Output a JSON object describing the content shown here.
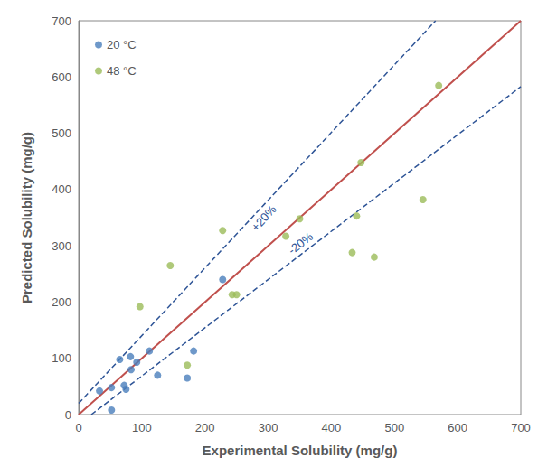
{
  "chart_data": {
    "type": "scatter",
    "xlabel": "Experimental Solubility (mg/g)",
    "ylabel": "Predicted Solubility (mg/g)",
    "xlim": [
      0,
      700
    ],
    "ylim": [
      0,
      700
    ],
    "xticks": [
      0,
      100,
      200,
      300,
      400,
      500,
      600,
      700
    ],
    "yticks": [
      0,
      100,
      200,
      300,
      400,
      500,
      600,
      700
    ],
    "grid": false,
    "legend": "top-left",
    "series": [
      {
        "name": "20 °C",
        "color": "#4a7ebb",
        "marker": "circle",
        "x": [
          33,
          52,
          52,
          65,
          72,
          75,
          82,
          83,
          92,
          112,
          125,
          172,
          182,
          228
        ],
        "values": [
          42,
          48,
          8,
          98,
          52,
          45,
          103,
          80,
          93,
          113,
          70,
          65,
          113,
          240
        ]
      },
      {
        "name": "48 °C",
        "color": "#9bbb59",
        "marker": "circle",
        "x": [
          97,
          145,
          172,
          228,
          243,
          250,
          328,
          350,
          433,
          440,
          447,
          468,
          545,
          570
        ],
        "values": [
          192,
          265,
          88,
          327,
          213,
          213,
          317,
          348,
          288,
          353,
          448,
          280,
          382,
          585
        ]
      }
    ],
    "lines": [
      {
        "x": [
          0,
          700
        ],
        "values": [
          0,
          700
        ],
        "color": "#c0504d",
        "line_style": "solid"
      },
      {
        "label": "+20%",
        "x": [
          0,
          565
        ],
        "values": [
          20,
          700
        ],
        "color": "#2f5597",
        "line_style": "dashed"
      },
      {
        "label": "-20%",
        "x": [
          20,
          700
        ],
        "values": [
          0,
          583
        ],
        "color": "#2f5597",
        "line_style": "dashed"
      }
    ]
  }
}
